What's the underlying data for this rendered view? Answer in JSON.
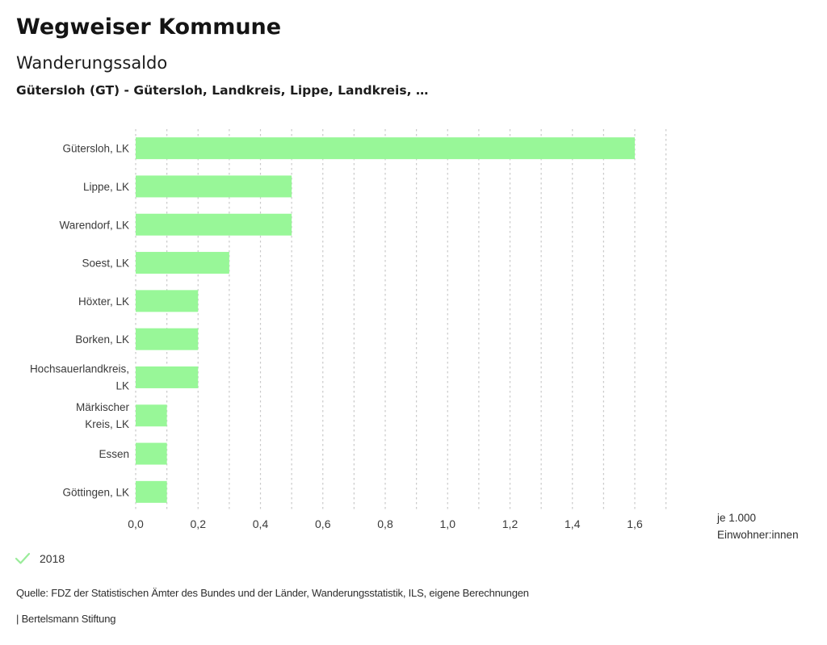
{
  "header": {
    "brand": "Wegweiser Kommune",
    "title": "Wanderungssaldo",
    "subtitle": "Gütersloh (GT) - Gütersloh, Landkreis, Lippe, Landkreis, …"
  },
  "chart_data": {
    "type": "bar",
    "orientation": "horizontal",
    "title": "Wanderungssaldo",
    "categories": [
      "Gütersloh, LK",
      "Lippe, LK",
      "Warendorf, LK",
      "Soest, LK",
      "Höxter, LK",
      "Borken, LK",
      "Hochsauerlandkreis,\nLK",
      "Märkischer\nKreis, LK",
      "Essen",
      "Göttingen, LK"
    ],
    "series": [
      {
        "name": "2018",
        "values": [
          1.6,
          0.5,
          0.5,
          0.3,
          0.2,
          0.2,
          0.2,
          0.1,
          0.1,
          0.1
        ]
      }
    ],
    "xlim": [
      0,
      1.7
    ],
    "grid_step": 0.1,
    "grid_on": true,
    "x_tick_values": [
      0.0,
      0.2,
      0.4,
      0.6,
      0.8,
      1.0,
      1.2,
      1.4,
      1.6
    ],
    "x_tick_labels": [
      "0,0",
      "0,2",
      "0,4",
      "0,6",
      "0,8",
      "1,0",
      "1,2",
      "1,4",
      "1,6"
    ],
    "xlabel": "je 1.000\nEinwohner:innen",
    "ylabel": "",
    "bar_color": "#98f798",
    "grid_color": "#c9c9c9",
    "legend_position": "bottom-left"
  },
  "legend": {
    "icon": "check-icon",
    "check_color": "#9aec9a",
    "year": "2018"
  },
  "footer": {
    "source": "Quelle: FDZ der Statistischen Ämter des Bundes und der Länder, Wanderungsstatistik, ILS, eigene Berechnungen",
    "attribution": "| Bertelsmann Stiftung"
  }
}
